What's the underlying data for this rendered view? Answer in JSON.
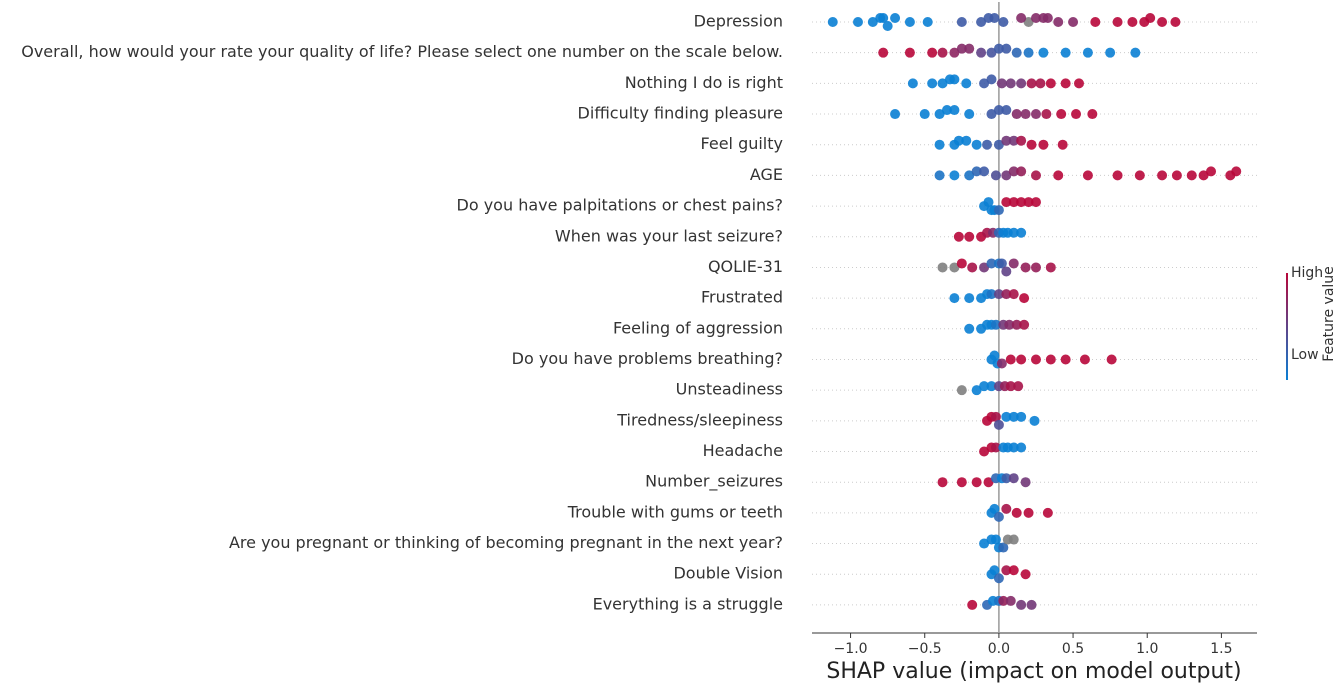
{
  "chart_data": {
    "type": "beeswarm",
    "xlabel": "SHAP value (impact on model output)",
    "colorbar_label": "Feature value",
    "colorbar_high": "High",
    "colorbar_low": "Low",
    "low_color": "#0a7fd4",
    "high_color": "#b8073a",
    "missing_color": "#808080",
    "xlim": [
      -1.26,
      1.74
    ],
    "xticks": [
      {
        "value": -1.0,
        "label": "−1.0"
      },
      {
        "value": -0.5,
        "label": "−0.5"
      },
      {
        "value": 0.0,
        "label": "0.0"
      },
      {
        "value": 0.5,
        "label": "0.5"
      },
      {
        "value": 1.0,
        "label": "1.0"
      },
      {
        "value": 1.5,
        "label": "1.5"
      }
    ],
    "categories": [
      "Depression",
      "Overall, how would your rate your quality of life? Please select one number on the scale below.",
      "Nothing I do is right",
      "Difficulty finding pleasure",
      "Feel guilty",
      "AGE",
      "Do you have palpitations or chest pains?",
      "When was your last seizure? ",
      "QOLIE-31",
      "Frustrated",
      "Feeling of aggression",
      "Do you have problems breathing?",
      "Unsteadiness",
      "Tiredness/sleepiness",
      "Headache",
      "Number_seizures",
      "Trouble with gums or teeth",
      "Are you pregnant or thinking of becoming pregnant in the next year?",
      "Double Vision",
      "Everything is a struggle"
    ],
    "shap_values": [
      [
        -1.12,
        -0.95,
        -0.85,
        -0.8,
        -0.78,
        -0.75,
        -0.7,
        -0.6,
        -0.48,
        -0.25,
        -0.12,
        -0.07,
        -0.03,
        0.03,
        0.2,
        0.15,
        0.25,
        0.3,
        0.33,
        0.4,
        0.5,
        0.65,
        0.8,
        0.9,
        0.98,
        1.02,
        1.1,
        1.19
      ],
      [
        -0.78,
        -0.6,
        -0.45,
        -0.38,
        -0.3,
        -0.25,
        -0.2,
        -0.12,
        -0.05,
        0.0,
        0.05,
        0.12,
        0.2,
        0.3,
        0.45,
        0.6,
        0.75,
        0.92
      ],
      [
        -0.58,
        -0.45,
        -0.38,
        -0.33,
        -0.3,
        -0.22,
        -0.1,
        -0.05,
        0.02,
        0.08,
        0.15,
        0.22,
        0.28,
        0.35,
        0.45,
        0.54
      ],
      [
        -0.7,
        -0.5,
        -0.4,
        -0.35,
        -0.3,
        -0.2,
        -0.05,
        0.0,
        0.05,
        0.12,
        0.18,
        0.25,
        0.32,
        0.42,
        0.52,
        0.63
      ],
      [
        -0.4,
        -0.3,
        -0.27,
        -0.22,
        -0.15,
        -0.08,
        0.0,
        0.05,
        0.1,
        0.15,
        0.22,
        0.3,
        0.43
      ],
      [
        -0.4,
        -0.3,
        -0.2,
        -0.15,
        -0.1,
        -0.02,
        0.05,
        0.1,
        0.15,
        0.25,
        0.4,
        0.6,
        0.8,
        0.95,
        1.1,
        1.2,
        1.3,
        1.38,
        1.43,
        1.56,
        1.6
      ],
      [
        -0.1,
        -0.07,
        -0.05,
        -0.03,
        0.0,
        0.05,
        0.1,
        0.15,
        0.2,
        0.25
      ],
      [
        -0.27,
        -0.2,
        -0.12,
        -0.08,
        -0.04,
        0.0,
        0.03,
        0.06,
        0.1,
        0.15
      ],
      [
        -0.38,
        -0.3,
        -0.25,
        -0.18,
        -0.1,
        -0.05,
        0.0,
        0.02,
        0.05,
        0.1,
        0.18,
        0.25,
        0.35
      ],
      [
        -0.3,
        -0.2,
        -0.12,
        -0.08,
        -0.05,
        0.0,
        0.05,
        0.1,
        0.17
      ],
      [
        -0.2,
        -0.12,
        -0.08,
        -0.05,
        -0.02,
        0.03,
        0.07,
        0.12,
        0.17
      ],
      [
        -0.05,
        -0.03,
        -0.01,
        0.02,
        0.08,
        0.15,
        0.25,
        0.35,
        0.45,
        0.58,
        0.76
      ],
      [
        -0.25,
        -0.15,
        -0.1,
        -0.05,
        0.0,
        0.04,
        0.08,
        0.13
      ],
      [
        -0.08,
        -0.05,
        -0.02,
        0.0,
        0.05,
        0.1,
        0.15,
        0.24
      ],
      [
        -0.1,
        -0.05,
        -0.02,
        0.03,
        0.06,
        0.1,
        0.15
      ],
      [
        -0.38,
        -0.25,
        -0.15,
        -0.07,
        -0.02,
        0.02,
        0.05,
        0.1,
        0.18
      ],
      [
        -0.05,
        -0.03,
        0.0,
        0.05,
        0.12,
        0.2,
        0.33
      ],
      [
        -0.1,
        -0.05,
        -0.02,
        0.0,
        0.03,
        0.06,
        0.1
      ],
      [
        -0.05,
        -0.03,
        0.0,
        0.05,
        0.1,
        0.18
      ],
      [
        -0.18,
        -0.08,
        -0.04,
        0.0,
        0.03,
        0.08,
        0.15,
        0.22
      ]
    ],
    "feature_values": [
      [
        0,
        0,
        0,
        0,
        0,
        0,
        0,
        0,
        0,
        0.3,
        0.3,
        0.3,
        0.3,
        0.3,
        null,
        0.7,
        0.7,
        0.7,
        0.7,
        0.7,
        0.7,
        1,
        1,
        1,
        1,
        1,
        1,
        1
      ],
      [
        1,
        1,
        1,
        0.9,
        0.75,
        0.7,
        0.7,
        0.5,
        0.35,
        0.3,
        0.3,
        0.2,
        0.1,
        0,
        0,
        0,
        0,
        0
      ],
      [
        0,
        0,
        0,
        0,
        0,
        0,
        0.3,
        0.3,
        0.6,
        0.6,
        0.6,
        0.9,
        0.9,
        1,
        1,
        1
      ],
      [
        0,
        0,
        0,
        0,
        0,
        0,
        0.3,
        0.3,
        0.3,
        0.7,
        0.7,
        0.7,
        0.9,
        1,
        1,
        1
      ],
      [
        0,
        0,
        0,
        0,
        0,
        0.3,
        0.3,
        0.6,
        0.6,
        0.9,
        1,
        1,
        1
      ],
      [
        0.1,
        0,
        0.1,
        0.2,
        0.3,
        0.4,
        0.6,
        0.7,
        0.8,
        0.9,
        1,
        1,
        1,
        1,
        1,
        1,
        1,
        1,
        1,
        1,
        1
      ],
      [
        0,
        0,
        0,
        0,
        0.2,
        1,
        1,
        1,
        1,
        1
      ],
      [
        1,
        1,
        1,
        0.9,
        0.7,
        0.2,
        0,
        0,
        0,
        0
      ],
      [
        null,
        null,
        1,
        0.9,
        0.6,
        0.2,
        0.1,
        0.3,
        0.5,
        0.7,
        0.8,
        0.8,
        0.9
      ],
      [
        0,
        0,
        0,
        0,
        0.1,
        0.5,
        0.8,
        0.9,
        1
      ],
      [
        0,
        0,
        0,
        0,
        0.1,
        0.6,
        0.7,
        0.8,
        0.9
      ],
      [
        0,
        0,
        0,
        0.7,
        1,
        1,
        1,
        1,
        1,
        1,
        1
      ],
      [
        null,
        0,
        0,
        0,
        0.5,
        0.8,
        0.9,
        0.9
      ],
      [
        1,
        1,
        0.9,
        0.4,
        0,
        0,
        0,
        0
      ],
      [
        1,
        1,
        0.9,
        0,
        0,
        0,
        0
      ],
      [
        1,
        1,
        1,
        1,
        0.2,
        0,
        0.3,
        0.5,
        0.6
      ],
      [
        0,
        0,
        0.2,
        0.9,
        1,
        1,
        1
      ],
      [
        0,
        0,
        0,
        0,
        0.2,
        null,
        null
      ],
      [
        0,
        0,
        0.2,
        0.9,
        1,
        1
      ],
      [
        1,
        0.2,
        0,
        0.1,
        0.8,
        0.7,
        0.6,
        0.6
      ]
    ]
  }
}
